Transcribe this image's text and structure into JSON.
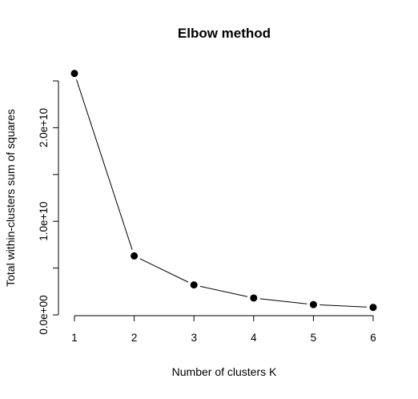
{
  "chart_data": {
    "type": "line",
    "title": "Elbow method",
    "xlabel": "Number of clusters K",
    "ylabel": "Total within-clusters sum of squares",
    "x": [
      1,
      2,
      3,
      4,
      5,
      6
    ],
    "series": [
      {
        "values": [
          25800000000,
          6300000000,
          3200000000,
          1800000000,
          1100000000,
          800000000
        ]
      }
    ],
    "xlim": [
      1,
      6
    ],
    "ylim": [
      0,
      25000000000
    ],
    "x_ticks": [
      1,
      2,
      3,
      4,
      5,
      6
    ],
    "x_tick_labels": [
      "1",
      "2",
      "3",
      "4",
      "5",
      "6"
    ],
    "y_ticks": [
      0,
      5000000000,
      10000000000,
      15000000000,
      20000000000,
      25000000000
    ],
    "y_tick_labels": [
      "0.0e+00",
      "",
      "1.0e+10",
      "",
      "2.0e+10",
      ""
    ],
    "grid": false,
    "marker": "filled-circle",
    "line_color": "#000000",
    "marker_color": "#000000"
  }
}
